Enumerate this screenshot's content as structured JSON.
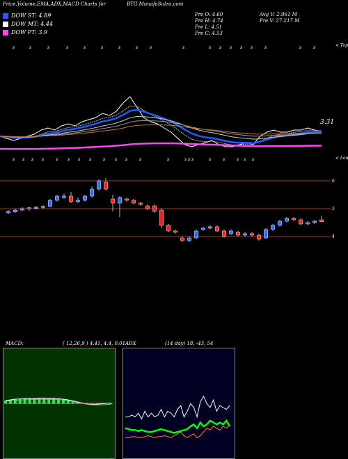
{
  "header": {
    "title": "Price,Volume,EMA,ADX,MACD Charts for",
    "symbol_site": "BTG MunafaSutra.com"
  },
  "legend": [
    {
      "label": "DOW ST: 4.89",
      "color": "#1e5cff"
    },
    {
      "label": "DOW MT: 4.44",
      "color": "#ffffff"
    },
    {
      "label": "DOW PT: 3.9",
      "color": "#ff44ff"
    }
  ],
  "ohlc": {
    "open": "Pre  O: 4.60",
    "high": "Pre  H: 4.74",
    "low": "Pre  L: 4.51",
    "close": "Pre  C: 4.53",
    "avg_vol": "Avg V: 2.961 M",
    "pre_vol": "Pre   V: 27.217 M"
  },
  "labels": {
    "tops": "< Tops",
    "lows": "< Lows",
    "ema_value": "3.31",
    "price_6": "6",
    "price_5": "5",
    "price_4": "4"
  },
  "colors": {
    "up": "#2f6bff",
    "down": "#ee2222",
    "ema_short": "#1e5cff",
    "ema_mid": "#ffffff",
    "ema_long": "#ff44ff",
    "level_line": "#aa3322"
  },
  "macd": {
    "title": "MACD:",
    "params": "( 12,26,9 ) 4.41, 4.4, 0.01"
  },
  "adx": {
    "title": "ADX",
    "params": "(14  day) 18,  -43,  54"
  },
  "chart_data": [
    {
      "type": "line",
      "name": "price-ema",
      "price_levels": [
        6,
        5,
        4
      ],
      "ema_label": 3.31,
      "close_line": [
        4.3,
        4.2,
        4.1,
        4.2,
        4.3,
        4.4,
        4.6,
        4.7,
        4.6,
        4.8,
        4.9,
        4.8,
        5.0,
        5.1,
        5.2,
        5.4,
        5.3,
        5.5,
        5.9,
        6.2,
        5.7,
        5.2,
        5.0,
        4.9,
        4.7,
        4.5,
        4.2,
        3.9,
        3.8,
        3.9,
        4.0,
        4.1,
        3.9,
        3.8,
        3.8,
        3.9,
        4.0,
        3.9,
        4.3,
        4.5,
        4.6,
        4.5,
        4.5,
        4.6,
        4.6,
        4.7,
        4.6,
        4.5
      ]
    },
    {
      "type": "bar",
      "name": "candles",
      "price_levels": [
        6,
        5,
        4
      ],
      "candles": [
        {
          "o": 4.85,
          "c": 4.9,
          "h": 4.95,
          "l": 4.8
        },
        {
          "o": 4.88,
          "c": 4.95,
          "h": 5.0,
          "l": 4.85
        },
        {
          "o": 4.95,
          "c": 5.0,
          "h": 5.05,
          "l": 4.9
        },
        {
          "o": 5.0,
          "c": 5.03,
          "h": 5.06,
          "l": 4.92
        },
        {
          "o": 5.02,
          "c": 5.05,
          "h": 5.1,
          "l": 4.98
        },
        {
          "o": 5.05,
          "c": 5.08,
          "h": 5.12,
          "l": 5.0
        },
        {
          "o": 5.08,
          "c": 5.3,
          "h": 5.35,
          "l": 5.05
        },
        {
          "o": 5.3,
          "c": 5.45,
          "h": 5.5,
          "l": 5.25
        },
        {
          "o": 5.4,
          "c": 5.45,
          "h": 5.55,
          "l": 5.35
        },
        {
          "o": 5.45,
          "c": 5.25,
          "h": 5.6,
          "l": 5.2
        },
        {
          "o": 5.25,
          "c": 5.3,
          "h": 5.4,
          "l": 5.2
        },
        {
          "o": 5.3,
          "c": 5.45,
          "h": 5.5,
          "l": 5.25
        },
        {
          "o": 5.45,
          "c": 5.7,
          "h": 5.8,
          "l": 5.4
        },
        {
          "o": 5.7,
          "c": 6.0,
          "h": 6.05,
          "l": 5.65
        },
        {
          "o": 5.95,
          "c": 5.7,
          "h": 6.1,
          "l": 5.65
        },
        {
          "o": 5.35,
          "c": 5.2,
          "h": 5.5,
          "l": 4.9
        },
        {
          "o": 5.2,
          "c": 5.4,
          "h": 5.45,
          "l": 4.7
        },
        {
          "o": 5.35,
          "c": 5.3,
          "h": 5.4,
          "l": 5.25
        },
        {
          "o": 5.3,
          "c": 5.2,
          "h": 5.35,
          "l": 5.15
        },
        {
          "o": 5.2,
          "c": 5.15,
          "h": 5.25,
          "l": 5.1
        },
        {
          "o": 5.1,
          "c": 5.0,
          "h": 5.15,
          "l": 4.95
        },
        {
          "o": 5.1,
          "c": 4.9,
          "h": 5.15,
          "l": 4.85
        },
        {
          "o": 4.95,
          "c": 4.4,
          "h": 5.0,
          "l": 4.3
        },
        {
          "o": 4.4,
          "c": 4.2,
          "h": 4.45,
          "l": 4.15
        },
        {
          "o": 4.2,
          "c": 4.15,
          "h": 4.25,
          "l": 4.1
        },
        {
          "o": 3.95,
          "c": 3.85,
          "h": 4.0,
          "l": 3.8
        },
        {
          "o": 3.85,
          "c": 3.95,
          "h": 4.0,
          "l": 3.8
        },
        {
          "o": 3.95,
          "c": 4.2,
          "h": 4.25,
          "l": 3.9
        },
        {
          "o": 4.25,
          "c": 4.3,
          "h": 4.35,
          "l": 4.2
        },
        {
          "o": 4.3,
          "c": 4.35,
          "h": 4.4,
          "l": 4.25
        },
        {
          "o": 4.35,
          "c": 4.2,
          "h": 4.4,
          "l": 4.15
        },
        {
          "o": 4.2,
          "c": 4.0,
          "h": 4.25,
          "l": 3.95
        },
        {
          "o": 4.1,
          "c": 4.2,
          "h": 4.25,
          "l": 4.05
        },
        {
          "o": 4.15,
          "c": 4.05,
          "h": 4.2,
          "l": 4.0
        },
        {
          "o": 4.05,
          "c": 4.1,
          "h": 4.15,
          "l": 4.0
        },
        {
          "o": 4.1,
          "c": 4.05,
          "h": 4.15,
          "l": 4.0
        },
        {
          "o": 4.05,
          "c": 3.9,
          "h": 4.1,
          "l": 3.85
        },
        {
          "o": 3.95,
          "c": 4.25,
          "h": 4.3,
          "l": 3.9
        },
        {
          "o": 4.25,
          "c": 4.4,
          "h": 4.45,
          "l": 4.2
        },
        {
          "o": 4.4,
          "c": 4.55,
          "h": 4.6,
          "l": 4.35
        },
        {
          "o": 4.55,
          "c": 4.65,
          "h": 4.7,
          "l": 4.5
        },
        {
          "o": 4.65,
          "c": 4.6,
          "h": 4.7,
          "l": 4.55
        },
        {
          "o": 4.6,
          "c": 4.45,
          "h": 4.65,
          "l": 4.4
        },
        {
          "o": 4.45,
          "c": 4.5,
          "h": 4.55,
          "l": 4.4
        },
        {
          "o": 4.5,
          "c": 4.55,
          "h": 4.6,
          "l": 4.45
        },
        {
          "o": 4.6,
          "c": 4.53,
          "h": 4.74,
          "l": 4.51
        }
      ]
    },
    {
      "type": "line",
      "name": "macd",
      "macd": [
        0.2,
        0.25,
        0.3,
        0.32,
        0.35,
        0.36,
        0.37,
        0.38,
        0.38,
        0.37,
        0.36,
        0.34,
        0.3,
        0.25,
        0.18,
        0.1,
        0.02,
        -0.05,
        -0.08,
        -0.06,
        -0.03,
        0.0,
        0.02
      ],
      "signal": [
        0.22,
        0.26,
        0.29,
        0.31,
        0.33,
        0.34,
        0.35,
        0.36,
        0.36,
        0.36,
        0.35,
        0.34,
        0.31,
        0.27,
        0.21,
        0.14,
        0.07,
        0.01,
        -0.03,
        -0.04,
        -0.03,
        -0.01,
        0.01
      ]
    },
    {
      "type": "line",
      "name": "adx",
      "di_plus": [
        30,
        30,
        32,
        30,
        34,
        28,
        36,
        30,
        34,
        30,
        32,
        38,
        30,
        36,
        34,
        30,
        38,
        42,
        30,
        36,
        44,
        40,
        30,
        46,
        52,
        44,
        40,
        48,
        36,
        42,
        40,
        38,
        42
      ],
      "di_minus": [
        18,
        17,
        16,
        16,
        15,
        16,
        15,
        14,
        14,
        15,
        16,
        17,
        16,
        15,
        14,
        13,
        14,
        15,
        16,
        17,
        20,
        22,
        18,
        24,
        20,
        22,
        26,
        24,
        22,
        24,
        22,
        26,
        20
      ],
      "adx_line": [
        8,
        8,
        9,
        9,
        8,
        8,
        9,
        10,
        9,
        8,
        9,
        9,
        10,
        9,
        8,
        10,
        12,
        14,
        10,
        8,
        10,
        12,
        8,
        10,
        14,
        18,
        16,
        20,
        18,
        16,
        20,
        18,
        22
      ]
    }
  ]
}
